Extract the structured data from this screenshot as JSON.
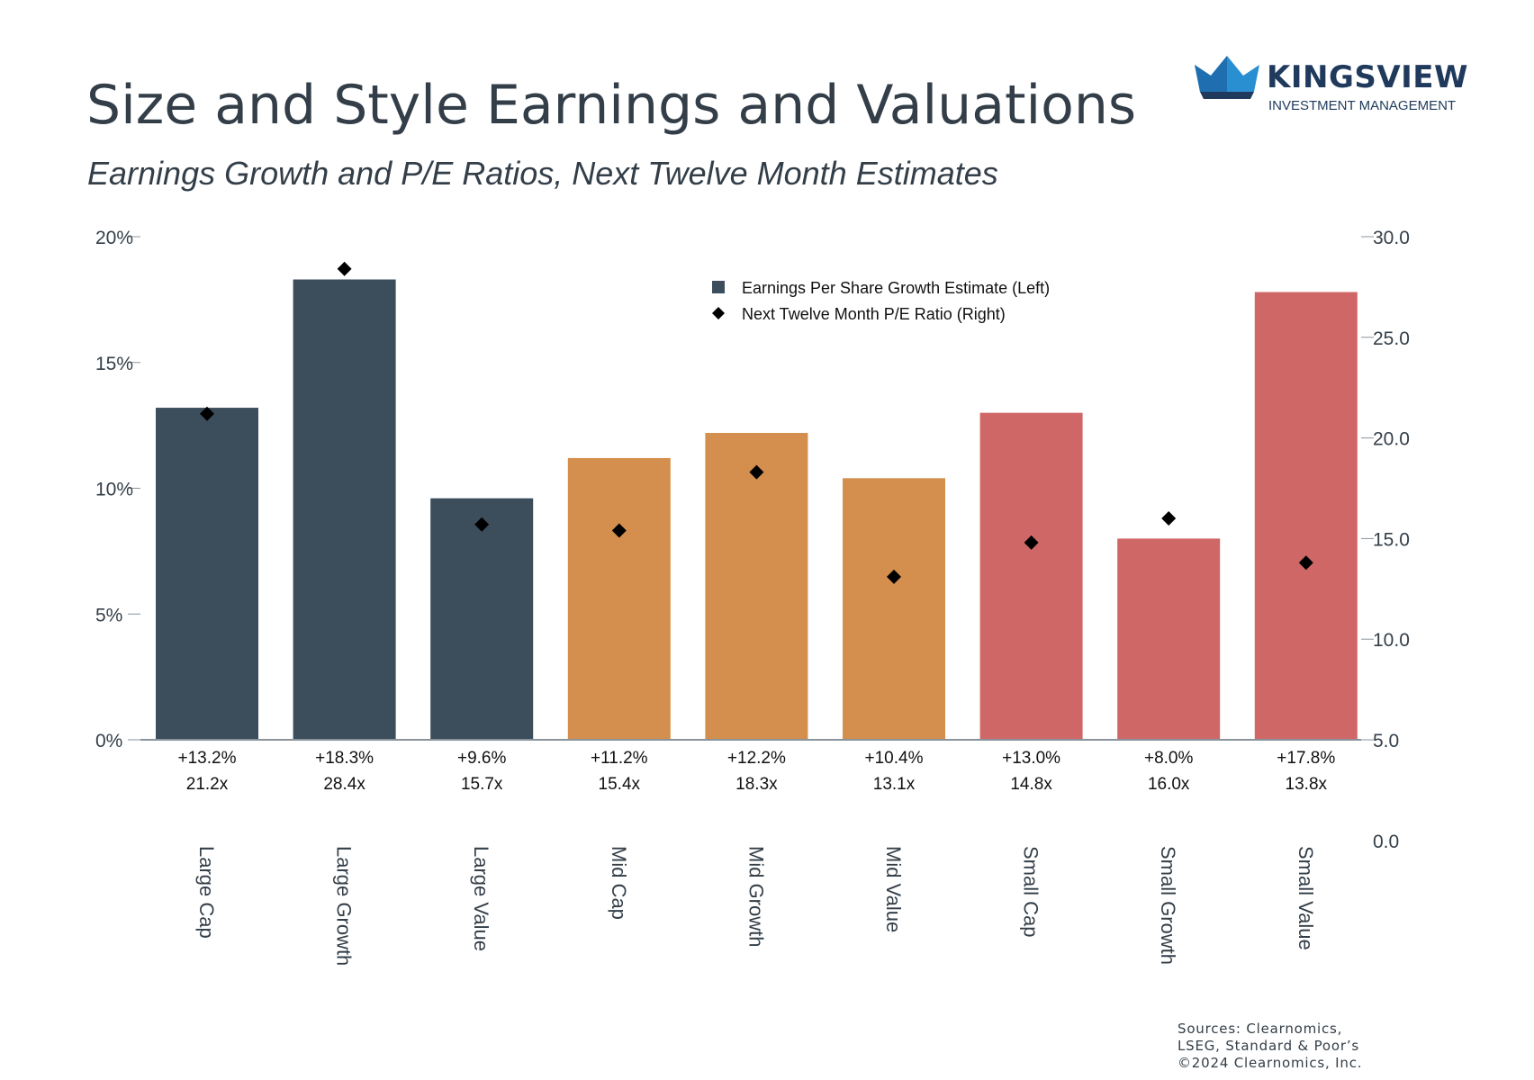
{
  "title": "Size and Style Earnings and Valuations",
  "subtitle": "Earnings Growth and P/E Ratios, Next Twelve Month Estimates",
  "logo": {
    "name": "KINGSVIEW",
    "tagline": "INVESTMENT MANAGEMENT",
    "icon": "crown-icon",
    "color": "#1f3a5c"
  },
  "sources": [
    "Sources: Clearnomics,",
    "LSEG, Standard & Poor’s",
    "©2024 Clearnomics, Inc."
  ],
  "chart_data": {
    "type": "bar",
    "categories": [
      "Large Cap",
      "Large Growth",
      "Large Value",
      "Mid Cap",
      "Mid Growth",
      "Mid Value",
      "Small Cap",
      "Small Growth",
      "Small Value"
    ],
    "series": [
      {
        "name": "Earnings Per Share Growth Estimate (Left)",
        "kind": "bar",
        "axis": "left",
        "values": [
          13.2,
          18.3,
          9.6,
          11.2,
          12.2,
          10.4,
          13.0,
          8.0,
          17.8
        ],
        "colors": [
          "#3c4d5c",
          "#3c4d5c",
          "#3c4d5c",
          "#d48f4e",
          "#d48f4e",
          "#d48f4e",
          "#d06767",
          "#d06767",
          "#d06767"
        ]
      },
      {
        "name": "Next Twelve Month P/E Ratio (Right)",
        "kind": "scatter",
        "axis": "right",
        "marker": "diamond",
        "values": [
          21.2,
          28.4,
          15.7,
          15.4,
          18.3,
          13.1,
          14.8,
          16.0,
          13.8
        ],
        "color": "#000000"
      }
    ],
    "bar_labels": [
      "+13.2%",
      "+18.3%",
      "+9.6%",
      "+11.2%",
      "+12.2%",
      "+10.4%",
      "+13.0%",
      "+8.0%",
      "+17.8%"
    ],
    "pe_labels": [
      "21.2x",
      "28.4x",
      "15.7x",
      "15.4x",
      "18.3x",
      "13.1x",
      "14.8x",
      "16.0x",
      "13.8x"
    ],
    "left_axis": {
      "min": 0,
      "max": 20,
      "ticks": [
        "0%",
        "5%",
        "10%",
        "15%",
        "20%"
      ],
      "tick_values": [
        0,
        5,
        10,
        15,
        20
      ]
    },
    "right_axis": {
      "min": 5,
      "max": 30,
      "ticks": [
        "0.0",
        "5.0",
        "10.0",
        "15.0",
        "20.0",
        "25.0",
        "30.0"
      ],
      "tick_values": [
        0,
        5,
        10,
        15,
        20,
        25,
        30
      ]
    },
    "legend_position": "top-center",
    "grid": false
  }
}
